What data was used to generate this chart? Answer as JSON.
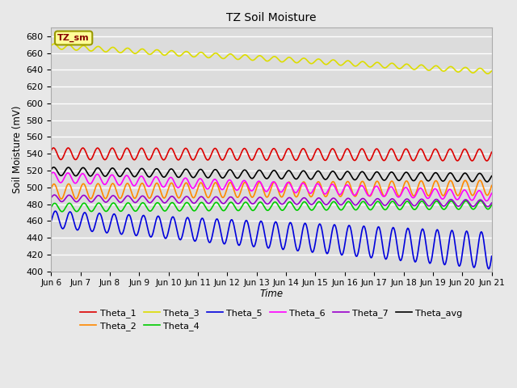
{
  "title": "TZ Soil Moisture",
  "ylabel": "Soil Moisture (mV)",
  "xlabel": "Time",
  "ylim": [
    400,
    690
  ],
  "xlim": [
    0,
    15
  ],
  "bg_color": "#DCDCDC",
  "fig_color": "#E8E8E8",
  "xtick_labels": [
    "Jun 6",
    "Jun 7",
    "Jun 8",
    "Jun 9",
    "Jun 10",
    "Jun 11",
    "Jun 12",
    "Jun 13",
    "Jun 14",
    "Jun 15",
    "Jun 16",
    "Jun 17",
    "Jun 18",
    "Jun 19",
    "Jun 20",
    "Jun 21"
  ],
  "ytick_values": [
    400,
    420,
    440,
    460,
    480,
    500,
    520,
    540,
    560,
    580,
    600,
    620,
    640,
    660,
    680
  ],
  "series": [
    {
      "name": "Theta_1",
      "color": "#DD0000",
      "base": 540,
      "amp": 7,
      "trend": -0.1,
      "freq": 2.0,
      "phase": 0.5,
      "amp_grow": 0.0
    },
    {
      "name": "Theta_2",
      "color": "#FF8800",
      "base": 495,
      "amp": 9,
      "trend": 0.3,
      "freq": 2.0,
      "phase": 0.3,
      "amp_grow": 0.0
    },
    {
      "name": "Theta_3",
      "color": "#DDDD00",
      "base": 668,
      "amp": 3,
      "trend": -2.0,
      "freq": 2.0,
      "phase": 0.2,
      "amp_grow": 0.0
    },
    {
      "name": "Theta_4",
      "color": "#00CC00",
      "base": 476,
      "amp": 5,
      "trend": 0.2,
      "freq": 2.0,
      "phase": 0.0,
      "amp_grow": 0.0
    },
    {
      "name": "Theta_5",
      "color": "#0000DD",
      "base": 462,
      "amp": 10,
      "trend": -2.5,
      "freq": 2.0,
      "phase": -0.3,
      "amp_grow": 0.8
    },
    {
      "name": "Theta_6",
      "color": "#FF00FF",
      "base": 512,
      "amp": 6,
      "trend": -1.5,
      "freq": 2.0,
      "phase": 0.6,
      "amp_grow": 0.0
    },
    {
      "name": "Theta_7",
      "color": "#9900CC",
      "base": 487,
      "amp": 4,
      "trend": -0.4,
      "freq": 2.0,
      "phase": 0.1,
      "amp_grow": 0.0
    },
    {
      "name": "Theta_avg",
      "color": "#000000",
      "base": 519,
      "amp": 5,
      "trend": -0.5,
      "freq": 2.0,
      "phase": 0.4,
      "amp_grow": 0.0
    }
  ],
  "label_box_text": "TZ_sm",
  "label_box_bg": "#FFFF99",
  "label_box_edge": "#999900",
  "label_box_text_color": "#880000",
  "legend_order": [
    "Theta_1",
    "Theta_2",
    "Theta_3",
    "Theta_4",
    "Theta_5",
    "Theta_6",
    "Theta_7",
    "Theta_avg"
  ]
}
